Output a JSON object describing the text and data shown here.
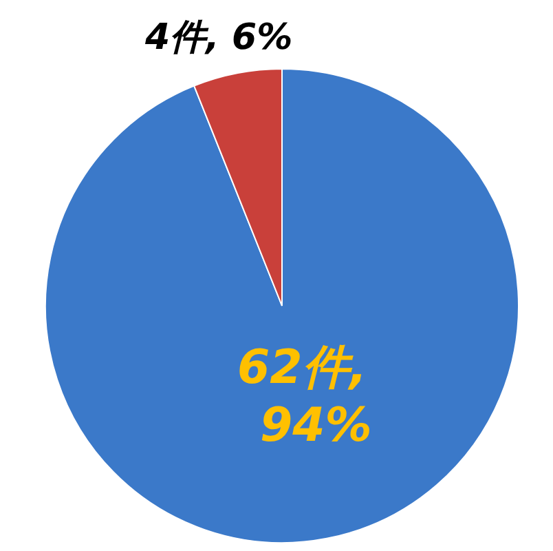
{
  "chart_data": {
    "type": "pie",
    "categories": [
      null,
      null
    ],
    "values": [
      62,
      4
    ],
    "colors": [
      "#3b79c9",
      "#c9403a"
    ],
    "value_labels": [
      "62件,\n94%",
      "4件, 6%"
    ]
  }
}
